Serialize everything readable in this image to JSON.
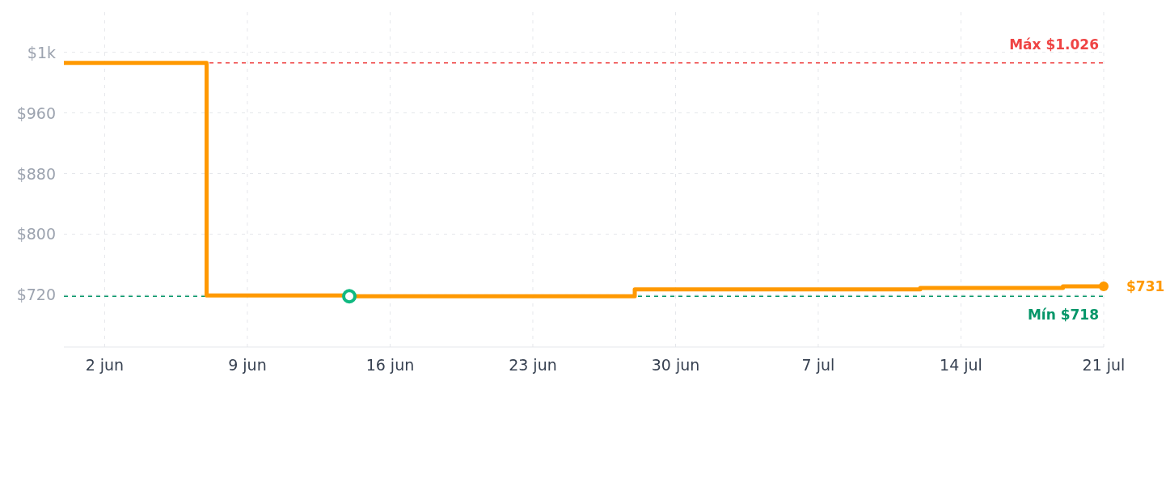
{
  "chart_data": {
    "type": "step",
    "x": [
      "--05-31",
      "--06-07",
      "--06-14",
      "--06-28",
      "--07-12",
      "--07-19",
      "--07-21"
    ],
    "series": [
      {
        "color": "#ff9900",
        "values": [
          1026,
          719,
          718,
          727,
          729,
          731,
          731
        ]
      }
    ],
    "xlim": [
      "--05-31",
      "--07-21"
    ],
    "xticks": [
      {
        "value": "--06-02",
        "label": "2 jun"
      },
      {
        "value": "--06-09",
        "label": "9 jun"
      },
      {
        "value": "--06-16",
        "label": "16 jun"
      },
      {
        "value": "--06-23",
        "label": "23 jun"
      },
      {
        "value": "--06-30",
        "label": "30 jun"
      },
      {
        "value": "--07-07",
        "label": "7 jul"
      },
      {
        "value": "--07-14",
        "label": "14 jul"
      },
      {
        "value": "--07-21",
        "label": "21 jul"
      }
    ],
    "ylim": [
      651,
      1093
    ],
    "yticks": [
      {
        "value": 720,
        "label": "$720"
      },
      {
        "value": 800,
        "label": "$800"
      },
      {
        "value": 880,
        "label": "$880"
      },
      {
        "value": 960,
        "label": "$960"
      },
      {
        "value": 1040,
        "label": "$1k"
      }
    ],
    "grid": true,
    "ref_lines": [
      {
        "axis": "y",
        "value": 1026,
        "label": "Máx $1.026",
        "color": "#ef4444",
        "line_style": "dashed"
      },
      {
        "axis": "y",
        "value": 718,
        "label": "Mín $718",
        "color": "#059669",
        "line_style": "dashed"
      }
    ],
    "annotations": [
      {
        "text": "$731",
        "x": "--07-21",
        "y": 731
      }
    ]
  }
}
